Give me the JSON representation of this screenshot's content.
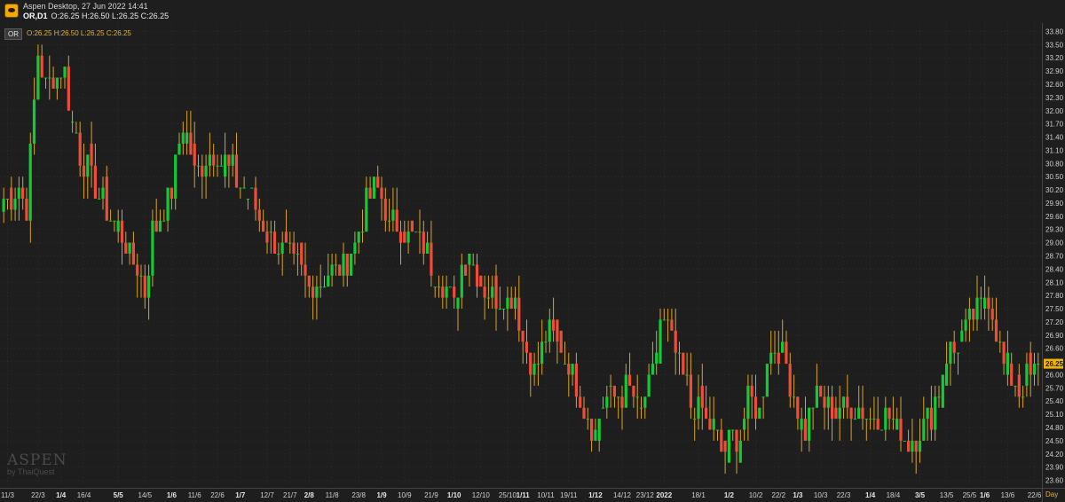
{
  "window": {
    "title": "Aspen Desktop, 27 Jun 2022 14:41",
    "symbol_label": "OR,D1",
    "ohlc_text": "O:26.25 H:26.50 L:26.25 C:26.25"
  },
  "legend": {
    "badge": "OR",
    "ohlc_text": "O:26.25  H:26.50  L:26.25  C:26.25"
  },
  "watermark": {
    "big": "ASPEN",
    "small": "by ThaiQuest"
  },
  "period": "Day",
  "last_price": "26.25",
  "colors": {
    "up": "#14c936",
    "down": "#ee4d38",
    "wick": "#d8a32a",
    "background": "#1e1e1e",
    "price_tag": "#f2b300"
  },
  "chart_data": {
    "type": "candlestick",
    "ylim": [
      23.45,
      33.95
    ],
    "y_ticks": [
      "33.80",
      "33.50",
      "33.20",
      "32.90",
      "32.60",
      "32.30",
      "32.00",
      "31.70",
      "31.40",
      "31.10",
      "30.80",
      "30.50",
      "30.20",
      "29.90",
      "29.60",
      "29.30",
      "29.00",
      "28.70",
      "28.40",
      "28.10",
      "27.80",
      "27.50",
      "27.20",
      "26.90",
      "26.60",
      "26.30",
      "26.00",
      "25.70",
      "25.40",
      "25.10",
      "24.80",
      "24.50",
      "24.20",
      "23.90",
      "23.60"
    ],
    "x_ticks": [
      {
        "label": "11/3",
        "bold": false,
        "i": 1
      },
      {
        "label": "22/3",
        "bold": false,
        "i": 9
      },
      {
        "label": "1/4",
        "bold": true,
        "i": 15
      },
      {
        "label": "16/4",
        "bold": false,
        "i": 21
      },
      {
        "label": "5/5",
        "bold": true,
        "i": 30
      },
      {
        "label": "14/5",
        "bold": false,
        "i": 37
      },
      {
        "label": "1/6",
        "bold": true,
        "i": 44
      },
      {
        "label": "11/6",
        "bold": false,
        "i": 50
      },
      {
        "label": "22/6",
        "bold": false,
        "i": 56
      },
      {
        "label": "1/7",
        "bold": true,
        "i": 62
      },
      {
        "label": "12/7",
        "bold": false,
        "i": 69
      },
      {
        "label": "21/7",
        "bold": false,
        "i": 75
      },
      {
        "label": "2/8",
        "bold": true,
        "i": 80
      },
      {
        "label": "11/8",
        "bold": false,
        "i": 86
      },
      {
        "label": "23/8",
        "bold": false,
        "i": 93
      },
      {
        "label": "1/9",
        "bold": true,
        "i": 99
      },
      {
        "label": "10/9",
        "bold": false,
        "i": 105
      },
      {
        "label": "21/9",
        "bold": false,
        "i": 112
      },
      {
        "label": "1/10",
        "bold": true,
        "i": 118
      },
      {
        "label": "12/10",
        "bold": false,
        "i": 125
      },
      {
        "label": "25/10",
        "bold": false,
        "i": 132
      },
      {
        "label": "1/11",
        "bold": true,
        "i": 136
      },
      {
        "label": "10/11",
        "bold": false,
        "i": 142
      },
      {
        "label": "19/11",
        "bold": false,
        "i": 148
      },
      {
        "label": "1/12",
        "bold": true,
        "i": 155
      },
      {
        "label": "14/12",
        "bold": false,
        "i": 162
      },
      {
        "label": "23/12",
        "bold": false,
        "i": 168
      },
      {
        "label": "2022",
        "bold": true,
        "i": 173
      },
      {
        "label": "18/1",
        "bold": false,
        "i": 182
      },
      {
        "label": "1/2",
        "bold": true,
        "i": 190
      },
      {
        "label": "10/2",
        "bold": false,
        "i": 197
      },
      {
        "label": "22/2",
        "bold": false,
        "i": 203
      },
      {
        "label": "1/3",
        "bold": true,
        "i": 208
      },
      {
        "label": "10/3",
        "bold": false,
        "i": 214
      },
      {
        "label": "22/3",
        "bold": false,
        "i": 220
      },
      {
        "label": "1/4",
        "bold": true,
        "i": 227
      },
      {
        "label": "18/4",
        "bold": false,
        "i": 233
      },
      {
        "label": "3/5",
        "bold": true,
        "i": 240
      },
      {
        "label": "13/5",
        "bold": false,
        "i": 247
      },
      {
        "label": "25/5",
        "bold": false,
        "i": 253
      },
      {
        "label": "1/6",
        "bold": true,
        "i": 257
      },
      {
        "label": "13/6",
        "bold": false,
        "i": 263
      },
      {
        "label": "22/6",
        "bold": false,
        "i": 270
      }
    ],
    "n_bars": 272,
    "anchors": [
      [
        0,
        29.9
      ],
      [
        4,
        30.2
      ],
      [
        6,
        29.8
      ],
      [
        9,
        33.4
      ],
      [
        11,
        32.6
      ],
      [
        13,
        32.7
      ],
      [
        16,
        32.9
      ],
      [
        18,
        31.7
      ],
      [
        21,
        30.8
      ],
      [
        24,
        30.2
      ],
      [
        27,
        29.8
      ],
      [
        29,
        29.5
      ],
      [
        34,
        28.6
      ],
      [
        37,
        27.9
      ],
      [
        39,
        29.2
      ],
      [
        41,
        29.5
      ],
      [
        44,
        30.2
      ],
      [
        47,
        31.8
      ],
      [
        50,
        30.6
      ],
      [
        53,
        30.9
      ],
      [
        56,
        31.0
      ],
      [
        58,
        30.8
      ],
      [
        60,
        30.6
      ],
      [
        62,
        30.3
      ],
      [
        66,
        29.8
      ],
      [
        69,
        29.3
      ],
      [
        73,
        28.8
      ],
      [
        76,
        28.5
      ],
      [
        80,
        28.0
      ],
      [
        84,
        28.2
      ],
      [
        88,
        28.3
      ],
      [
        91,
        28.8
      ],
      [
        93,
        29.3
      ],
      [
        95,
        29.8
      ],
      [
        97,
        30.3
      ],
      [
        99,
        29.9
      ],
      [
        101,
        29.4
      ],
      [
        104,
        29.3
      ],
      [
        107,
        29.1
      ],
      [
        110,
        28.9
      ],
      [
        113,
        28.4
      ],
      [
        116,
        27.9
      ],
      [
        118,
        27.5
      ],
      [
        120,
        28.5
      ],
      [
        122,
        28.8
      ],
      [
        125,
        28.0
      ],
      [
        128,
        27.9
      ],
      [
        131,
        27.8
      ],
      [
        134,
        27.7
      ],
      [
        136,
        26.8
      ],
      [
        139,
        26.1
      ],
      [
        142,
        26.9
      ],
      [
        145,
        26.7
      ],
      [
        148,
        26.3
      ],
      [
        151,
        25.5
      ],
      [
        153,
        25.1
      ],
      [
        155,
        24.8
      ],
      [
        158,
        25.5
      ],
      [
        161,
        25.6
      ],
      [
        164,
        25.6
      ],
      [
        167,
        25.2
      ],
      [
        170,
        26.0
      ],
      [
        172,
        27.3
      ],
      [
        174,
        27.0
      ],
      [
        177,
        26.2
      ],
      [
        180,
        25.4
      ],
      [
        183,
        25.1
      ],
      [
        186,
        24.8
      ],
      [
        188,
        24.3
      ],
      [
        191,
        24.6
      ],
      [
        193,
        24.7
      ],
      [
        195,
        25.4
      ],
      [
        198,
        25.1
      ],
      [
        200,
        26.5
      ],
      [
        203,
        26.6
      ],
      [
        206,
        25.9
      ],
      [
        208,
        25.1
      ],
      [
        210,
        24.8
      ],
      [
        212,
        25.4
      ],
      [
        215,
        25.3
      ],
      [
        218,
        25.2
      ],
      [
        221,
        25.2
      ],
      [
        224,
        25.2
      ],
      [
        227,
        25.1
      ],
      [
        230,
        25.1
      ],
      [
        233,
        24.9
      ],
      [
        236,
        24.6
      ],
      [
        238,
        24.5
      ],
      [
        240,
        24.8
      ],
      [
        243,
        25.2
      ],
      [
        245,
        25.7
      ],
      [
        247,
        26.4
      ],
      [
        250,
        26.7
      ],
      [
        253,
        27.2
      ],
      [
        256,
        27.6
      ],
      [
        258,
        27.8
      ],
      [
        260,
        27.1
      ],
      [
        262,
        26.3
      ],
      [
        264,
        25.8
      ],
      [
        266,
        25.7
      ],
      [
        268,
        25.9
      ],
      [
        270,
        26.0
      ],
      [
        271,
        26.25
      ]
    ]
  }
}
